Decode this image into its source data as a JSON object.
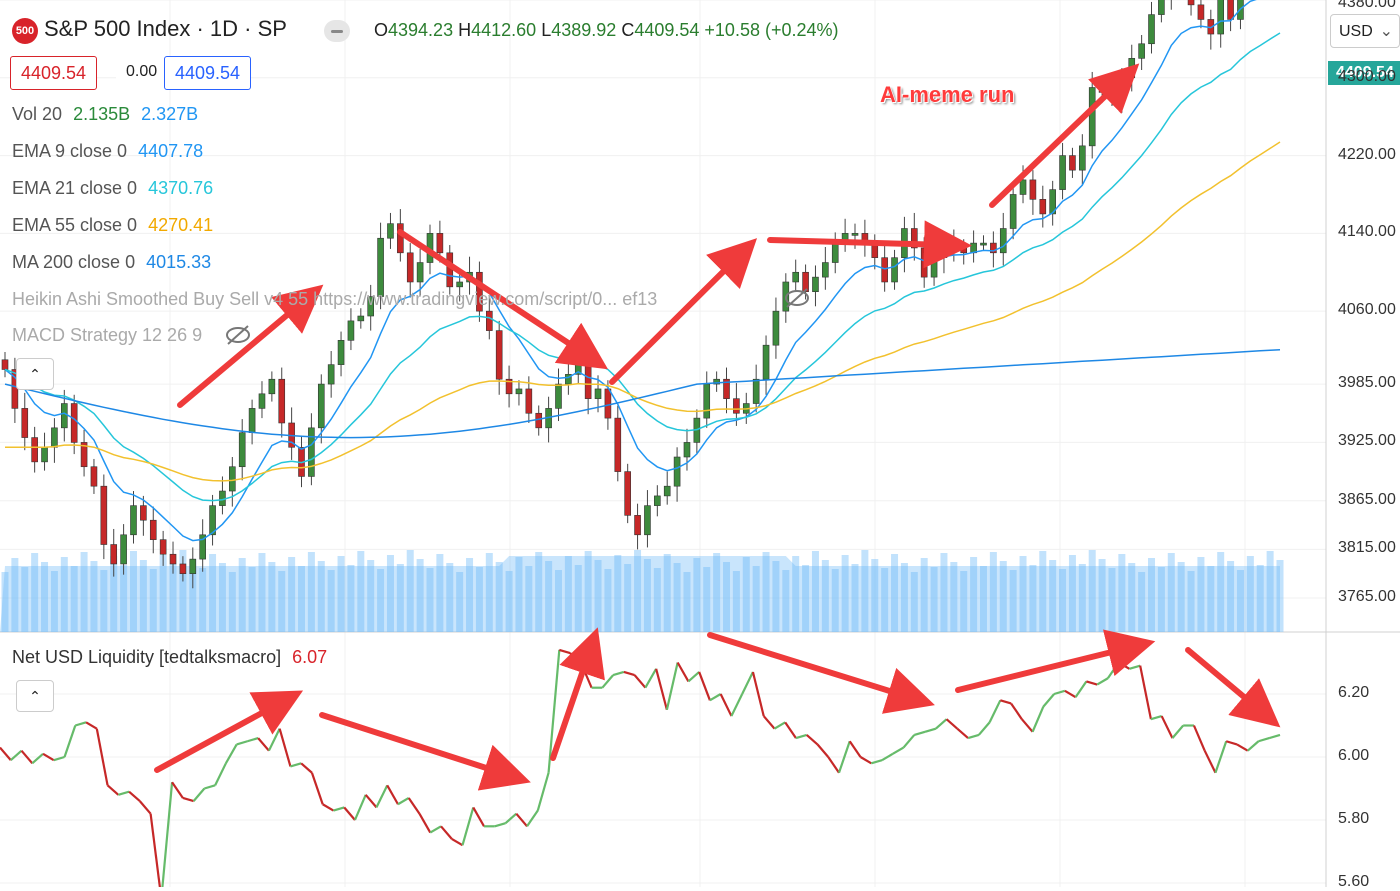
{
  "header": {
    "symbol_badge": "500",
    "symbol_title": "S&P 500 Index · 1D · SP",
    "ohlc": {
      "o_label": "O",
      "o": "4394.23",
      "h_label": "H",
      "h": "4412.60",
      "l_label": "L",
      "l": "4389.92",
      "c_label": "C",
      "c": "4409.54",
      "change": "+10.58 (+0.24%)"
    },
    "price_box_left": "4409.54",
    "spread": "0.00",
    "price_box_right": "4409.54"
  },
  "legend": {
    "vol": {
      "label": "Vol 20",
      "v1": "2.135B",
      "v2": "2.327B"
    },
    "ema9": {
      "label": "EMA 9 close 0",
      "value": "4407.78"
    },
    "ema21": {
      "label": "EMA 21 close 0",
      "value": "4370.76"
    },
    "ema55": {
      "label": "EMA 55 close 0",
      "value": "4270.41"
    },
    "ma200": {
      "label": "MA 200 close 0",
      "value": "4015.33"
    },
    "heikin": {
      "label": "Heikin Ashi Smoothed Buy Sell v4 55 https://www.tradingview.com/script/0... ef13"
    },
    "macd": {
      "label": "MACD Strategy 12 26 9"
    }
  },
  "lower_pane": {
    "title": "Net USD Liquidity [tedtalksmacro]",
    "value": "6.07"
  },
  "annotation": "AI-meme run",
  "price_axis": {
    "currency": "USD",
    "last_price": "4409.54",
    "ticks": [
      "4380.00",
      "4300.00",
      "4220.00",
      "4140.00",
      "4060.00",
      "3985.00",
      "3925.00",
      "3865.00",
      "3815.00",
      "3765.00"
    ]
  },
  "liquidity_axis": {
    "ticks": [
      "6.20",
      "6.00",
      "5.80",
      "5.60"
    ]
  },
  "colors": {
    "up": "#26a69a",
    "down": "#d8232a",
    "candle_up": "#3d8b3d",
    "candle_down": "#c62828",
    "ema9": "#2196f3",
    "ema21": "#26c6da",
    "ema55": "#f2c12e",
    "ma200": "#1e88e5",
    "arrow": "#ef3b3b",
    "liquidity_up": "#66bb6a",
    "liquidity_down": "#c62828"
  },
  "chart_data": [
    {
      "type": "candlestick",
      "title": "S&P 500 Index · 1D · SP",
      "ylim": [
        3740,
        4440
      ],
      "y_ticks": [
        3765,
        3815,
        3865,
        3925,
        3985,
        4060,
        4140,
        4220,
        4300,
        4380
      ],
      "series_meta": [
        "EMA 9",
        "EMA 21",
        "EMA 55",
        "MA 200",
        "Vol 20"
      ],
      "close": [
        4000,
        3960,
        3930,
        3905,
        3920,
        3940,
        3965,
        3925,
        3900,
        3880,
        3820,
        3800,
        3830,
        3860,
        3845,
        3825,
        3810,
        3800,
        3790,
        3805,
        3830,
        3860,
        3875,
        3900,
        3935,
        3960,
        3975,
        3990,
        3945,
        3920,
        3890,
        3940,
        3985,
        4005,
        4030,
        4050,
        4055,
        4075,
        4135,
        4150,
        4120,
        4090,
        4110,
        4140,
        4120,
        4085,
        4090,
        4100,
        4060,
        4040,
        3990,
        3975,
        3980,
        3955,
        3940,
        3960,
        3985,
        3995,
        4020,
        3970,
        3980,
        3950,
        3895,
        3850,
        3830,
        3860,
        3870,
        3880,
        3910,
        3925,
        3950,
        3985,
        3990,
        3970,
        3955,
        3965,
        3990,
        4025,
        4060,
        4090,
        4100,
        4080,
        4095,
        4110,
        4130,
        4140,
        4140,
        4130,
        4115,
        4090,
        4115,
        4145,
        4125,
        4095,
        4115,
        4130,
        4125,
        4120,
        4130,
        4130,
        4120,
        4145,
        4180,
        4195,
        4175,
        4160,
        4185,
        4220,
        4205,
        4230,
        4290,
        4285,
        4280,
        4300,
        4320,
        4335,
        4365,
        4385,
        4415,
        4395,
        4375,
        4360,
        4345,
        4385,
        4360,
        4420,
        4410,
        4395,
        4405,
        4409.54
      ],
      "ema9_end": 4407.78,
      "ema21_end": 4370.76,
      "ema55_end": 4270.41,
      "ma200_end": 4015.33
    },
    {
      "type": "line",
      "title": "Net USD Liquidity [tedtalksmacro]",
      "ylim": [
        5.6,
        6.4
      ],
      "y_ticks": [
        5.6,
        5.8,
        6.0,
        6.2
      ],
      "values": [
        6.03,
        5.99,
        6.02,
        5.98,
        6.01,
        5.99,
        6.0,
        6.1,
        6.11,
        6.09,
        5.91,
        5.88,
        5.89,
        5.86,
        5.82,
        5.55,
        5.92,
        5.87,
        5.86,
        5.9,
        5.91,
        5.98,
        6.04,
        6.05,
        6.06,
        6.02,
        6.09,
        5.97,
        5.98,
        5.95,
        5.85,
        5.83,
        5.84,
        5.8,
        5.88,
        5.84,
        5.91,
        5.85,
        5.87,
        5.82,
        5.76,
        5.78,
        5.74,
        5.72,
        5.84,
        5.78,
        5.78,
        5.79,
        5.82,
        5.78,
        5.83,
        5.95,
        6.34,
        6.33,
        6.3,
        6.22,
        6.22,
        6.26,
        6.27,
        6.26,
        6.22,
        6.28,
        6.15,
        6.3,
        6.24,
        6.27,
        6.18,
        6.2,
        6.13,
        6.2,
        6.27,
        6.13,
        6.09,
        6.11,
        6.06,
        6.07,
        6.04,
        6.0,
        5.95,
        6.05,
        6.0,
        5.98,
        5.99,
        6.01,
        6.03,
        6.07,
        6.08,
        6.09,
        6.12,
        6.09,
        6.06,
        6.07,
        6.11,
        6.18,
        6.17,
        6.12,
        6.08,
        6.16,
        6.2,
        6.21,
        6.19,
        6.24,
        6.23,
        6.25,
        6.3,
        6.28,
        6.29,
        6.12,
        6.13,
        6.06,
        6.1,
        6.1,
        6.02,
        5.95,
        6.05,
        6.04,
        6.02,
        6.05,
        6.06,
        6.07
      ]
    }
  ]
}
